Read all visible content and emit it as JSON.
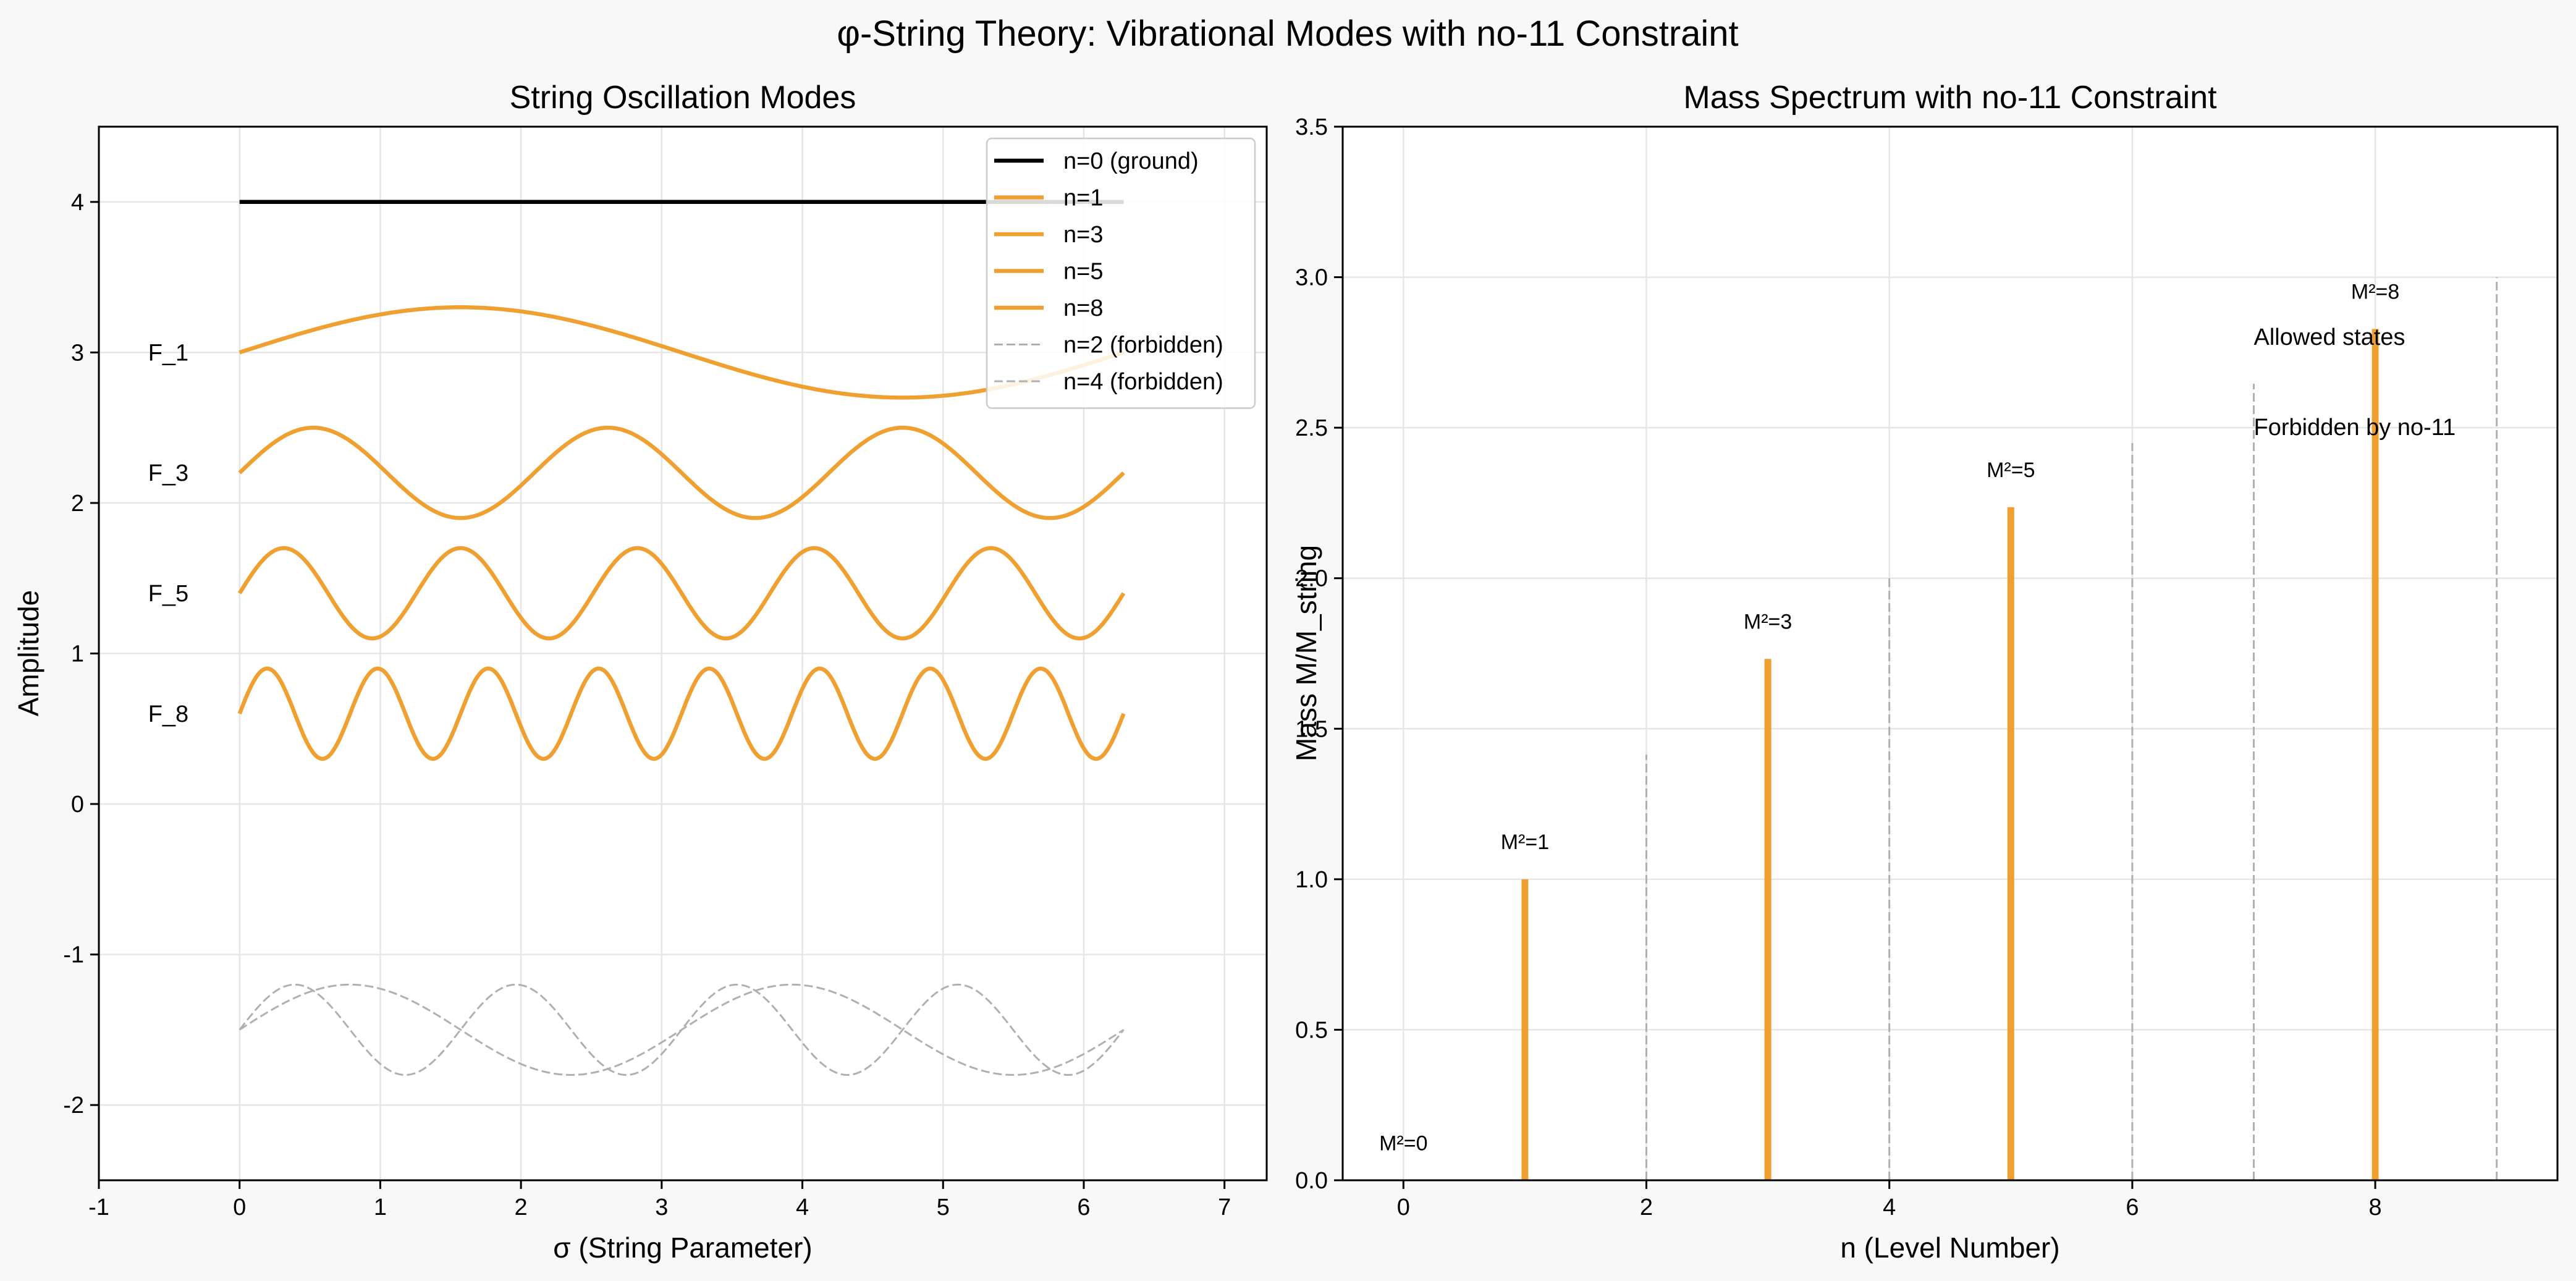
{
  "figure": {
    "title": "φ-String Theory: Vibrational Modes with no-11 Constraint",
    "background": "#f8f8f8"
  },
  "colors": {
    "allowed": "#f0a030",
    "ground": "#000000",
    "forbidden": "#b0b0b0",
    "allowed_text": "#f0a030",
    "forbidden_text": "#808080",
    "grid": "#e6e6e6"
  },
  "chart_data": [
    {
      "type": "line",
      "title": "String Oscillation Modes",
      "xlabel": "σ (String Parameter)",
      "ylabel": "Amplitude",
      "xlim": [
        -1,
        7.3
      ],
      "ylim": [
        -2.5,
        4.5
      ],
      "xticks": [
        -1,
        0,
        1,
        2,
        3,
        4,
        5,
        6,
        7
      ],
      "yticks": [
        -2,
        -1,
        0,
        1,
        2,
        3,
        4
      ],
      "grid": true,
      "legend_position": "top-right",
      "sigma_range": [
        0,
        6.2832
      ],
      "series": [
        {
          "name": "n=0 (ground)",
          "style": "solid",
          "color": "#000000",
          "offset": 4.0,
          "amplitude": 0.0,
          "wavenumber": 0,
          "label": ""
        },
        {
          "name": "n=1",
          "style": "solid",
          "color": "#f0a030",
          "offset": 3.0,
          "amplitude": 0.3,
          "wavenumber": 1,
          "label": "F_1"
        },
        {
          "name": "n=3",
          "style": "solid",
          "color": "#f0a030",
          "offset": 2.2,
          "amplitude": 0.3,
          "wavenumber": 3,
          "label": "F_3"
        },
        {
          "name": "n=5",
          "style": "solid",
          "color": "#f0a030",
          "offset": 1.4,
          "amplitude": 0.3,
          "wavenumber": 5,
          "label": "F_5"
        },
        {
          "name": "n=8",
          "style": "solid",
          "color": "#f0a030",
          "offset": 0.6,
          "amplitude": 0.3,
          "wavenumber": 8,
          "label": "F_8"
        },
        {
          "name": "n=2 (forbidden)",
          "style": "dashed",
          "color": "#b0b0b0",
          "offset": -1.5,
          "amplitude": 0.3,
          "wavenumber": 2,
          "label": ""
        },
        {
          "name": "n=4 (forbidden)",
          "style": "dashed",
          "color": "#b0b0b0",
          "offset": -1.5,
          "amplitude": 0.3,
          "wavenumber": 4,
          "label": ""
        }
      ]
    },
    {
      "type": "bar",
      "title": "Mass Spectrum with no-11 Constraint",
      "xlabel": "n (Level Number)",
      "ylabel": "Mass M/M_string",
      "xlim": [
        -0.5,
        9.5
      ],
      "ylim": [
        0,
        3.5
      ],
      "xticks": [
        0,
        2,
        4,
        6,
        8
      ],
      "yticks": [
        0.0,
        0.5,
        1.0,
        1.5,
        2.0,
        2.5,
        3.0,
        3.5
      ],
      "grid": true,
      "allowed": [
        {
          "n": 0,
          "mass": 0.0,
          "label": "M²=0"
        },
        {
          "n": 1,
          "mass": 1.0,
          "label": "M²=1"
        },
        {
          "n": 3,
          "mass": 1.732,
          "label": "M²=3"
        },
        {
          "n": 5,
          "mass": 2.236,
          "label": "M²=5"
        },
        {
          "n": 8,
          "mass": 2.828,
          "label": "M²=8"
        }
      ],
      "forbidden": [
        {
          "n": 2,
          "mass": 1.414
        },
        {
          "n": 4,
          "mass": 2.0
        },
        {
          "n": 6,
          "mass": 2.449
        },
        {
          "n": 7,
          "mass": 2.646
        },
        {
          "n": 9,
          "mass": 3.0
        }
      ],
      "annotations": {
        "allowed": "Allowed states",
        "forbidden": "Forbidden by no-11"
      }
    }
  ]
}
